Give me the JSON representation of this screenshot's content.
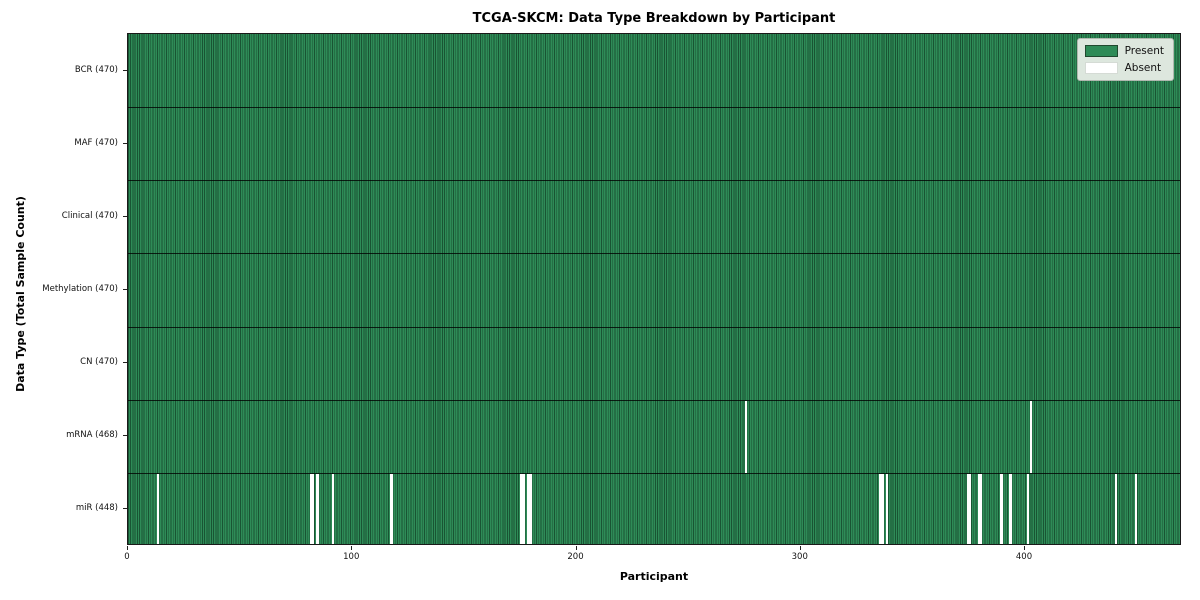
{
  "title": "TCGA-SKCM: Data Type Breakdown by Participant",
  "legend": {
    "present_label": "Present",
    "absent_label": "Absent"
  },
  "colors": {
    "present": "#2e8b57",
    "column_edge": "rgba(8,38,22,0.55)",
    "absent": "#ffffff",
    "row_separator": "rgba(0,0,0,0.78)",
    "legend_background": "#dde7de",
    "legend_border": "#afb8af"
  },
  "chart_data": {
    "type": "heatmap",
    "title": "TCGA-SKCM: Data Type Breakdown by Participant",
    "xlabel": "Participant",
    "ylabel": "Data Type (Total Sample Count)",
    "legend_entries": [
      "Present",
      "Absent"
    ],
    "legend_position": "upper right",
    "xlim": [
      0,
      470
    ],
    "x_ticks": [
      0,
      100,
      200,
      300,
      400
    ],
    "n_participants": 470,
    "grid": false,
    "rows": [
      {
        "label": "BCR (470)",
        "data_type": "BCR",
        "total": 470,
        "absent_participants": []
      },
      {
        "label": "MAF (470)",
        "data_type": "MAF",
        "total": 470,
        "absent_participants": []
      },
      {
        "label": "Clinical (470)",
        "data_type": "Clinical",
        "total": 470,
        "absent_participants": []
      },
      {
        "label": "Methylation (470)",
        "data_type": "Methylation",
        "total": 470,
        "absent_participants": []
      },
      {
        "label": "CN (470)",
        "data_type": "CN",
        "total": 470,
        "absent_participants": []
      },
      {
        "label": "mRNA (468)",
        "data_type": "mRNA",
        "total": 468,
        "absent_participants": [
          275,
          402
        ]
      },
      {
        "label": "miR (448)",
        "data_type": "miR",
        "total": 448,
        "absent_participants": [
          13,
          81,
          82,
          84,
          91,
          117,
          175,
          176,
          178,
          179,
          335,
          336,
          338,
          374,
          375,
          379,
          380,
          389,
          393,
          401,
          440,
          449
        ]
      }
    ]
  }
}
